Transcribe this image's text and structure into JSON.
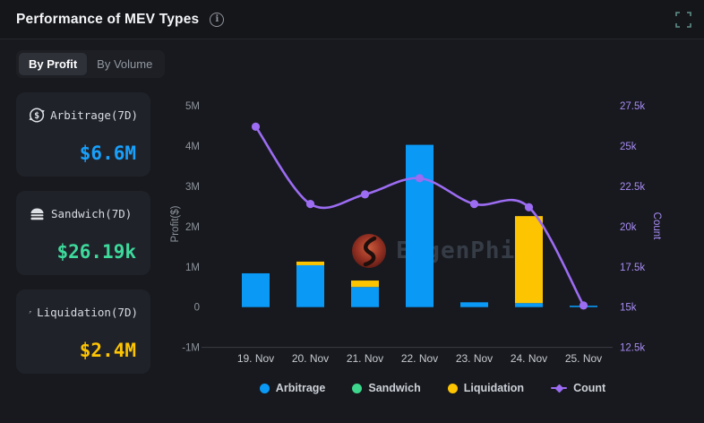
{
  "header": {
    "title": "Performance of MEV Types"
  },
  "tabs": [
    {
      "label": "By Profit",
      "active": true
    },
    {
      "label": "By Volume",
      "active": false
    }
  ],
  "cards": [
    {
      "label": "Arbitrage(7D)",
      "value": "$6.6M",
      "color": "#18A0FB"
    },
    {
      "label": "Sandwich(7D)",
      "value": "$26.19k",
      "color": "#3EDA9C"
    },
    {
      "label": "Liquidation(7D)",
      "value": "$2.4M",
      "color": "#FDC402"
    }
  ],
  "watermark": {
    "text": "EigenPhi"
  },
  "colors": {
    "arbitrage": "#0A99F5",
    "sandwich": "#3DD68C",
    "liquidation": "#FDC402",
    "count": "#9C6CF2",
    "axis_line": "#3A3D44"
  },
  "chart_data": {
    "type": "bar",
    "subtype": "stacked-bars-with-line",
    "title": "Performance of MEV Types",
    "categories": [
      "19. Nov",
      "20. Nov",
      "21. Nov",
      "22. Nov",
      "23. Nov",
      "24. Nov",
      "25. Nov"
    ],
    "series": [
      {
        "name": "Arbitrage",
        "type": "bar",
        "axis": "left",
        "color": "#0A99F5",
        "values_M_usd": [
          0.84,
          1.04,
          0.5,
          4.03,
          0.12,
          0.1,
          0.02
        ]
      },
      {
        "name": "Sandwich",
        "type": "bar",
        "axis": "left",
        "color": "#3DD68C",
        "values_M_usd": [
          0,
          0,
          0,
          0,
          0,
          0,
          0
        ]
      },
      {
        "name": "Liquidation",
        "type": "bar",
        "axis": "left",
        "color": "#FDC402",
        "values_M_usd": [
          0,
          0.09,
          0.16,
          0,
          0,
          2.16,
          0
        ]
      },
      {
        "name": "Count",
        "type": "line",
        "axis": "right",
        "color": "#9C6CF2",
        "values": [
          26200,
          21400,
          22000,
          23000,
          21400,
          21200,
          15100
        ]
      }
    ],
    "left_axis": {
      "label": "Profit($)",
      "ticks": [
        "5M",
        "4M",
        "3M",
        "2M",
        "1M",
        "0",
        "-1M"
      ],
      "min_M": -1,
      "max_M": 5
    },
    "right_axis": {
      "label": "Count",
      "ticks": [
        "27.5k",
        "25k",
        "22.5k",
        "20k",
        "17.5k",
        "15k",
        "12.5k"
      ],
      "min": 12500,
      "max": 27500
    },
    "legend": [
      "Arbitrage",
      "Sandwich",
      "Liquidation",
      "Count"
    ],
    "grid": false,
    "legend_position": "bottom"
  }
}
